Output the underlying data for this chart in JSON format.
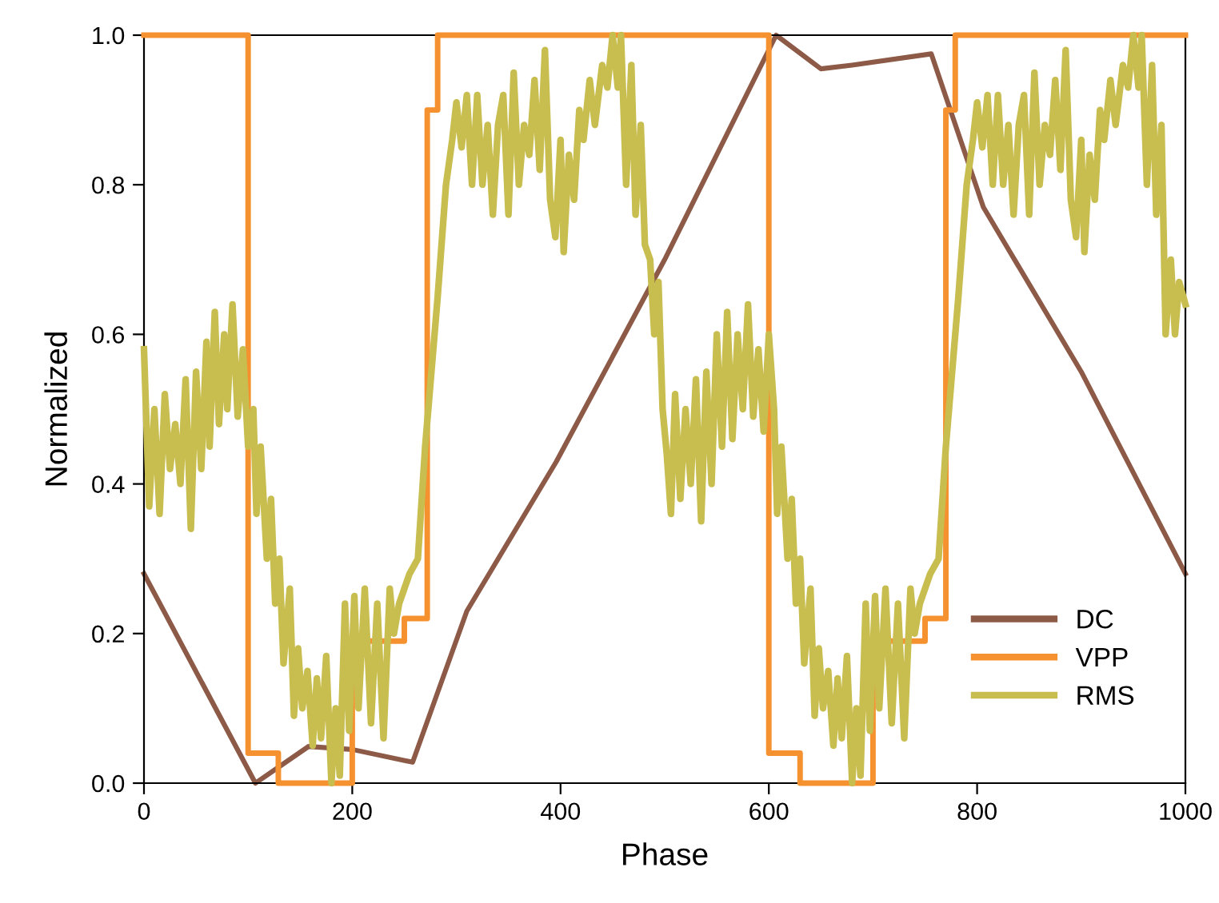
{
  "chart_data": {
    "type": "line",
    "xlabel": "Phase",
    "ylabel": "Normalized",
    "xlim": [
      0,
      1000
    ],
    "ylim": [
      0,
      1
    ],
    "xticks": [
      0,
      200,
      400,
      600,
      800,
      1000
    ],
    "yticks": [
      {
        "value": 0,
        "label": "0.0"
      },
      {
        "value": 0.2,
        "label": "0.2"
      },
      {
        "value": 0.4,
        "label": "0.4"
      },
      {
        "value": 0.6,
        "label": "0.6"
      },
      {
        "value": 0.8,
        "label": "0.8"
      },
      {
        "value": 1,
        "label": "1.0"
      }
    ],
    "grid": false,
    "legend": "bottom right",
    "marker": "none",
    "line_style": "solid",
    "series": [
      {
        "name": "DC",
        "color": "#8c5a46",
        "x": [
          0,
          107,
          158,
          200,
          258,
          310,
          396,
          500,
          607,
          650,
          680,
          756,
          806,
          900,
          1000
        ],
        "values": [
          0.28,
          0,
          0.049,
          0.045,
          0.028,
          0.23,
          0.43,
          0.7,
          1.0,
          0.955,
          0.96,
          0.975,
          0.77,
          0.55,
          0.28
        ]
      },
      {
        "name": "VPP",
        "color": "#f5922f",
        "type": "step",
        "x": [
          0,
          100,
          129,
          200,
          250,
          272,
          282,
          600,
          630,
          700,
          750,
          770,
          779,
          1000
        ],
        "values": [
          1,
          0.04,
          0,
          0.19,
          0.22,
          0.9,
          1,
          0.04,
          0,
          0.19,
          0.22,
          0.9,
          1,
          1
        ]
      },
      {
        "name": "RMS",
        "color": "#c8bd4f",
        "x": [
          0,
          5,
          10,
          15,
          20,
          25,
          30,
          35,
          40,
          45,
          50,
          55,
          60,
          63,
          68,
          72,
          77,
          80,
          85,
          90,
          95,
          100,
          105,
          108,
          112,
          118,
          122,
          126,
          130,
          134,
          140,
          144,
          148,
          152,
          157,
          162,
          166,
          170,
          175,
          180,
          184,
          188,
          193,
          197,
          202,
          206,
          212,
          218,
          224,
          230,
          236,
          240,
          245,
          255,
          263,
          270,
          276,
          282,
          290,
          296,
          300,
          305,
          310,
          315,
          320,
          325,
          330,
          335,
          340,
          345,
          350,
          355,
          360,
          365,
          370,
          375,
          380,
          385,
          390,
          395,
          400,
          403,
          408,
          413,
          418,
          422,
          428,
          433,
          440,
          445,
          450,
          455,
          458,
          463,
          468,
          472,
          477,
          481,
          486,
          490,
          494,
          498,
          502,
          506,
          510,
          515,
          520,
          525,
          530,
          535,
          540,
          545,
          550,
          555,
          560,
          565,
          570,
          575,
          580,
          585,
          590,
          595,
          600,
          605,
          608,
          612,
          618,
          622,
          626,
          630,
          634,
          640,
          644,
          648,
          652,
          657,
          662,
          666,
          670,
          675,
          680,
          684,
          688,
          693,
          697,
          702,
          706,
          712,
          718,
          724,
          730,
          736,
          740,
          745,
          755,
          763,
          770,
          776,
          782,
          790,
          796,
          800,
          805,
          810,
          815,
          820,
          825,
          830,
          835,
          840,
          845,
          850,
          855,
          860,
          865,
          870,
          875,
          880,
          885,
          890,
          895,
          900,
          903,
          908,
          913,
          918,
          922,
          928,
          933,
          940,
          945,
          950,
          955,
          958,
          963,
          968,
          972,
          977,
          981,
          986,
          990,
          994,
          1000
        ],
        "values": [
          0.58,
          0.37,
          0.5,
          0.36,
          0.52,
          0.42,
          0.48,
          0.4,
          0.54,
          0.34,
          0.55,
          0.42,
          0.59,
          0.45,
          0.63,
          0.48,
          0.6,
          0.5,
          0.64,
          0.49,
          0.58,
          0.45,
          0.5,
          0.36,
          0.45,
          0.3,
          0.38,
          0.24,
          0.3,
          0.16,
          0.26,
          0.09,
          0.18,
          0.1,
          0.15,
          0.05,
          0.14,
          0.06,
          0.17,
          0.0,
          0.1,
          0.01,
          0.24,
          0.07,
          0.25,
          0.1,
          0.26,
          0.08,
          0.24,
          0.06,
          0.26,
          0.2,
          0.24,
          0.28,
          0.3,
          0.45,
          0.55,
          0.65,
          0.8,
          0.86,
          0.91,
          0.85,
          0.92,
          0.8,
          0.92,
          0.8,
          0.88,
          0.76,
          0.88,
          0.92,
          0.76,
          0.95,
          0.8,
          0.88,
          0.84,
          0.94,
          0.82,
          0.98,
          0.78,
          0.73,
          0.86,
          0.71,
          0.84,
          0.78,
          0.9,
          0.86,
          0.94,
          0.88,
          0.96,
          0.93,
          1.0,
          0.93,
          1.0,
          0.8,
          0.96,
          0.76,
          0.88,
          0.72,
          0.7,
          0.6,
          0.67,
          0.5,
          0.44,
          0.36,
          0.52,
          0.38,
          0.5,
          0.4,
          0.54,
          0.35,
          0.55,
          0.4,
          0.6,
          0.45,
          0.63,
          0.46,
          0.6,
          0.5,
          0.64,
          0.49,
          0.58,
          0.47,
          0.6,
          0.5,
          0.36,
          0.45,
          0.3,
          0.38,
          0.24,
          0.3,
          0.16,
          0.26,
          0.09,
          0.18,
          0.1,
          0.15,
          0.05,
          0.14,
          0.06,
          0.17,
          0.0,
          0.1,
          0.01,
          0.24,
          0.07,
          0.25,
          0.1,
          0.26,
          0.08,
          0.24,
          0.06,
          0.26,
          0.2,
          0.24,
          0.28,
          0.3,
          0.45,
          0.55,
          0.65,
          0.8,
          0.86,
          0.91,
          0.85,
          0.92,
          0.8,
          0.92,
          0.8,
          0.88,
          0.76,
          0.88,
          0.92,
          0.76,
          0.95,
          0.8,
          0.88,
          0.84,
          0.94,
          0.82,
          0.98,
          0.78,
          0.73,
          0.86,
          0.71,
          0.84,
          0.78,
          0.9,
          0.86,
          0.94,
          0.88,
          0.96,
          0.93,
          1.0,
          0.93,
          1.0,
          0.8,
          0.96,
          0.76,
          0.88,
          0.6,
          0.7,
          0.6,
          0.67,
          0.64
        ]
      }
    ]
  }
}
